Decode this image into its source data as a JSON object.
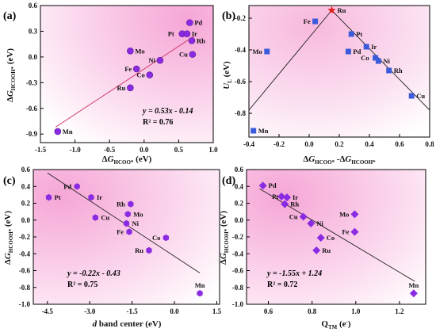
{
  "chart_data": [
    {
      "type": "scatter",
      "panel_label": "(a)",
      "xlabel": "ΔG_HCOO* (eV)",
      "ylabel": "ΔG_HCOOH* (eV)",
      "xlim": [
        -1.5,
        1.0
      ],
      "ylim": [
        -1.0,
        0.6
      ],
      "xticks": [
        "-1.5",
        "-1.0",
        "-0.5",
        "0.0",
        "0.5",
        "1.0"
      ],
      "yticks": [
        "-0.9",
        "-0.6",
        "-0.3",
        "0.0",
        "0.3",
        "0.6"
      ],
      "marker": "circle",
      "marker_color": "#8a2be2",
      "fit": {
        "slope": 0.53,
        "intercept": -0.14,
        "x_range": [
          -1.28,
          0.72
        ]
      },
      "annotation": [
        "y = 0.53x - 0.14",
        "R² = 0.76"
      ],
      "points": [
        {
          "label": "Pd",
          "x": 0.66,
          "y": 0.4
        },
        {
          "label": "Pt",
          "x": 0.55,
          "y": 0.27
        },
        {
          "label": "Ir",
          "x": 0.62,
          "y": 0.27
        },
        {
          "label": "Rh",
          "x": 0.69,
          "y": 0.19
        },
        {
          "label": "Cu",
          "x": 0.7,
          "y": 0.03
        },
        {
          "label": "Mo",
          "x": -0.2,
          "y": 0.07
        },
        {
          "label": "Ni",
          "x": 0.23,
          "y": -0.04
        },
        {
          "label": "Fe",
          "x": -0.11,
          "y": -0.14
        },
        {
          "label": "Co",
          "x": 0.08,
          "y": -0.21
        },
        {
          "label": "Ru",
          "x": -0.2,
          "y": -0.36
        },
        {
          "label": "Mn",
          "x": -1.25,
          "y": -0.87
        }
      ]
    },
    {
      "type": "scatter",
      "panel_label": "(b)",
      "xlabel": "ΔG_HCOO* -ΔG_HCOOH*",
      "ylabel": "U_L (eV)",
      "xlim": [
        -0.4,
        0.8
      ],
      "ylim": [
        -0.95,
        -0.12
      ],
      "xticks": [
        "-0.4",
        "-0.2",
        "0.0",
        "0.2",
        "0.4",
        "0.6",
        "0.8"
      ],
      "yticks": [
        "-0.2",
        "-0.4",
        "-0.6",
        "-0.8"
      ],
      "marker": "square",
      "marker_color": "#3b5bdb",
      "highlight_marker": "star",
      "highlight_color": "#e02020",
      "volcano": [
        [
          -0.4,
          -0.78
        ],
        [
          0.15,
          -0.15
        ],
        [
          0.8,
          -0.78
        ]
      ],
      "points": [
        {
          "label": "Ru",
          "x": 0.15,
          "y": -0.15,
          "highlight": true
        },
        {
          "label": "Fe",
          "x": 0.04,
          "y": -0.22
        },
        {
          "label": "Pt",
          "x": 0.28,
          "y": -0.3
        },
        {
          "label": "Mo",
          "x": -0.28,
          "y": -0.41
        },
        {
          "label": "Ir",
          "x": 0.38,
          "y": -0.38
        },
        {
          "label": "Pd",
          "x": 0.26,
          "y": -0.41
        },
        {
          "label": "Co",
          "x": 0.44,
          "y": -0.45
        },
        {
          "label": "Ni",
          "x": 0.46,
          "y": -0.47
        },
        {
          "label": "Rh",
          "x": 0.53,
          "y": -0.53
        },
        {
          "label": "Cu",
          "x": 0.68,
          "y": -0.69
        },
        {
          "label": "Mn",
          "x": -0.37,
          "y": -0.91
        }
      ]
    },
    {
      "type": "scatter",
      "panel_label": "(c)",
      "xlabel": "d band center (eV)",
      "ylabel": "ΔG_HCOOH* (eV)",
      "xlim": [
        -5.0,
        1.6
      ],
      "ylim": [
        -1.0,
        0.6
      ],
      "xticks": [
        "-4.5",
        "-3.0",
        "-1.5",
        "0.0",
        "1.5"
      ],
      "yticks": [
        "-1.0",
        "-0.8",
        "-0.6",
        "-0.4",
        "-0.2",
        "0.0",
        "0.2",
        "0.4",
        "0.6"
      ],
      "marker": "hexagon",
      "marker_color": "#8a2be2",
      "fit": {
        "slope": -0.22,
        "intercept": -0.43,
        "x_range": [
          -4.5,
          0.9
        ]
      },
      "annotation": [
        "y = -0.22x - 0.43",
        "R² = 0.75"
      ],
      "points": [
        {
          "label": "Pd",
          "x": -3.45,
          "y": 0.4
        },
        {
          "label": "Pt",
          "x": -4.45,
          "y": 0.27
        },
        {
          "label": "Ir",
          "x": -2.95,
          "y": 0.27
        },
        {
          "label": "Rh",
          "x": -1.55,
          "y": 0.19
        },
        {
          "label": "Mo",
          "x": -1.65,
          "y": 0.07
        },
        {
          "label": "Cu",
          "x": -2.8,
          "y": 0.03
        },
        {
          "label": "Ni",
          "x": -1.7,
          "y": -0.04
        },
        {
          "label": "Fe",
          "x": -1.6,
          "y": -0.14
        },
        {
          "label": "Co",
          "x": -0.3,
          "y": -0.21
        },
        {
          "label": "Ru",
          "x": -0.9,
          "y": -0.36
        },
        {
          "label": "Mn",
          "x": 0.9,
          "y": -0.87
        }
      ]
    },
    {
      "type": "scatter",
      "panel_label": "(d)",
      "xlabel": "Q_TM (e⁻)",
      "ylabel": "ΔG_HCOOH* (eV)",
      "xlim": [
        0.5,
        1.32
      ],
      "ylim": [
        -1.0,
        0.6
      ],
      "xticks": [
        "0.6",
        "0.8",
        "1.0",
        "1.2"
      ],
      "yticks": [
        "-1.0",
        "-0.8",
        "-0.6",
        "-0.4",
        "-0.2",
        "0.0",
        "0.2",
        "0.4",
        "0.6"
      ],
      "marker": "diamond",
      "marker_color": "#8a2be2",
      "fit": {
        "slope": -1.55,
        "intercept": 1.24,
        "x_range": [
          0.56,
          1.27
        ]
      },
      "annotation": [
        "y = -1.55x + 1.24",
        "R² = 0.72"
      ],
      "points": [
        {
          "label": "Pd",
          "x": 0.575,
          "y": 0.41
        },
        {
          "label": "Pt",
          "x": 0.66,
          "y": 0.28
        },
        {
          "label": "Ir",
          "x": 0.685,
          "y": 0.27
        },
        {
          "label": "Rh",
          "x": 0.675,
          "y": 0.19
        },
        {
          "label": "Cu",
          "x": 0.76,
          "y": 0.04
        },
        {
          "label": "Ni",
          "x": 0.795,
          "y": -0.04
        },
        {
          "label": "Mo",
          "x": 0.995,
          "y": 0.07
        },
        {
          "label": "Fe",
          "x": 0.995,
          "y": -0.14
        },
        {
          "label": "Co",
          "x": 0.84,
          "y": -0.21
        },
        {
          "label": "Ru",
          "x": 0.82,
          "y": -0.36
        },
        {
          "label": "Mn",
          "x": 1.265,
          "y": -0.87
        }
      ]
    }
  ]
}
